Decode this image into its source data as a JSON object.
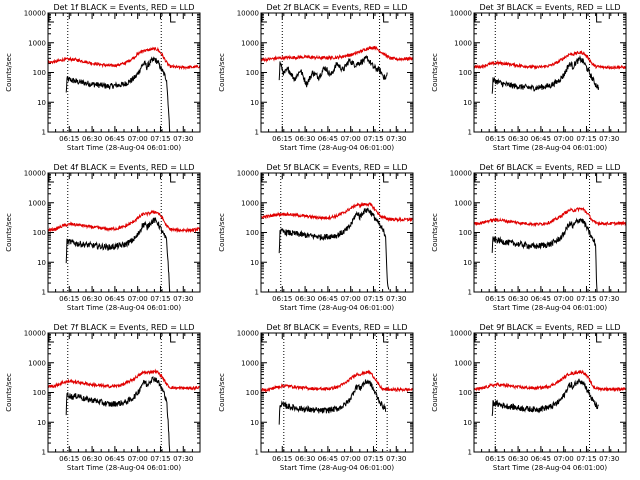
{
  "figure": {
    "common": {
      "xlabel": "Start Time (28-Aug-04 06:01:00)",
      "ylabel": "Counts/sec",
      "x_ticks": [
        "06:15",
        "06:30",
        "06:45",
        "07:00",
        "07:15",
        "07:30"
      ],
      "x_tick_minutes": [
        14,
        29,
        44,
        59,
        74,
        89
      ],
      "y_ticks": [
        "1",
        "10",
        "100",
        "1000",
        "10000"
      ],
      "x_range_minutes": [
        0,
        100
      ],
      "y_range": [
        1,
        10000
      ],
      "y_scale": "log",
      "series_colors": {
        "events": "#000000",
        "lld": "#e00000"
      }
    }
  },
  "chart_data": [
    {
      "type": "line",
      "title": "Det 1f BLACK = Events, RED = LLD",
      "markers": [
        13,
        74.5
      ],
      "flags": [
        0,
        80
      ],
      "series": [
        {
          "key": "events",
          "start": 12,
          "end": 80,
          "x": [
            12,
            12.5,
            20,
            30,
            40,
            50,
            55,
            58,
            60,
            62,
            64,
            65,
            67,
            70,
            72,
            75,
            78,
            79,
            79.6,
            80
          ],
          "y": [
            20,
            60,
            48,
            40,
            34,
            40,
            55,
            75,
            110,
            180,
            200,
            150,
            220,
            280,
            230,
            120,
            60,
            10,
            3,
            1
          ]
        },
        {
          "key": "lld",
          "start": 0,
          "end": 100,
          "x": [
            0,
            5,
            10,
            15,
            20,
            30,
            40,
            45,
            50,
            55,
            60,
            63,
            65,
            68,
            70,
            72,
            75,
            78,
            80,
            85,
            90,
            95,
            100
          ],
          "y": [
            220,
            230,
            270,
            280,
            260,
            200,
            170,
            175,
            200,
            280,
            450,
            560,
            550,
            600,
            620,
            600,
            400,
            220,
            160,
            150,
            150,
            150,
            160
          ]
        }
      ]
    },
    {
      "type": "line",
      "title": "Det 2f BLACK = Events, RED = LLD",
      "markers": [
        14,
        78
      ],
      "flags": [
        0,
        80
      ],
      "series": [
        {
          "key": "events",
          "start": 12,
          "end": 83,
          "x": [
            12,
            12.5,
            15,
            18,
            22,
            26,
            30,
            34,
            38,
            42,
            46,
            50,
            54,
            58,
            62,
            66,
            70,
            74,
            78,
            82,
            83
          ],
          "y": [
            50,
            220,
            90,
            130,
            60,
            120,
            40,
            100,
            70,
            150,
            80,
            200,
            120,
            250,
            180,
            230,
            300,
            150,
            120,
            60,
            90
          ]
        },
        {
          "key": "lld",
          "start": 0,
          "end": 100,
          "x": [
            0,
            10,
            20,
            30,
            40,
            50,
            60,
            65,
            70,
            75,
            80,
            85,
            90,
            100
          ],
          "y": [
            260,
            300,
            320,
            330,
            310,
            320,
            400,
            500,
            650,
            700,
            450,
            300,
            280,
            300
          ]
        }
      ]
    },
    {
      "type": "line",
      "title": "Det 3f BLACK = Events, RED = LLD",
      "markers": [
        14,
        76
      ],
      "flags": [
        0,
        80
      ],
      "series": [
        {
          "key": "events",
          "start": 12,
          "end": 82,
          "x": [
            12,
            12.5,
            20,
            30,
            40,
            50,
            55,
            58,
            60,
            62,
            64,
            65,
            67,
            70,
            72,
            75,
            78,
            80,
            82
          ],
          "y": [
            20,
            55,
            40,
            33,
            30,
            36,
            50,
            70,
            100,
            170,
            200,
            150,
            220,
            280,
            230,
            120,
            60,
            40,
            30
          ]
        },
        {
          "key": "lld",
          "start": 0,
          "end": 100,
          "x": [
            0,
            5,
            10,
            15,
            20,
            30,
            40,
            45,
            50,
            55,
            60,
            63,
            65,
            68,
            70,
            72,
            75,
            78,
            80,
            85,
            90,
            95,
            100
          ],
          "y": [
            150,
            160,
            190,
            210,
            200,
            170,
            150,
            155,
            170,
            220,
            330,
            420,
            410,
            450,
            470,
            450,
            320,
            190,
            160,
            150,
            150,
            150,
            150
          ]
        }
      ]
    },
    {
      "type": "line",
      "title": "Det 4f BLACK = Events, RED = LLD",
      "markers": [
        13,
        74.5
      ],
      "flags": [
        0,
        80
      ],
      "series": [
        {
          "key": "events",
          "start": 12,
          "end": 80,
          "x": [
            12,
            12.5,
            20,
            30,
            40,
            50,
            55,
            58,
            60,
            62,
            64,
            65,
            67,
            70,
            72,
            75,
            78,
            79,
            79.6,
            80
          ],
          "y": [
            10,
            50,
            42,
            36,
            32,
            38,
            52,
            70,
            100,
            170,
            190,
            140,
            210,
            260,
            220,
            110,
            55,
            10,
            3,
            1
          ]
        },
        {
          "key": "lld",
          "start": 0,
          "end": 100,
          "x": [
            0,
            5,
            10,
            15,
            20,
            30,
            40,
            45,
            50,
            55,
            60,
            63,
            65,
            68,
            70,
            72,
            75,
            78,
            80,
            85,
            90,
            95,
            100
          ],
          "y": [
            120,
            130,
            170,
            190,
            180,
            150,
            130,
            135,
            155,
            210,
            330,
            430,
            420,
            470,
            490,
            470,
            320,
            170,
            130,
            120,
            120,
            120,
            130
          ]
        }
      ]
    },
    {
      "type": "line",
      "title": "Det 5f BLACK = Events, RED = LLD",
      "markers": [
        13,
        78
      ],
      "flags": [
        0,
        80
      ],
      "series": [
        {
          "key": "events",
          "start": 12,
          "end": 84,
          "x": [
            12,
            12.5,
            20,
            30,
            40,
            50,
            55,
            58,
            60,
            62,
            64,
            65,
            67,
            70,
            72,
            75,
            78,
            80,
            82,
            83,
            84
          ],
          "y": [
            20,
            110,
            95,
            80,
            70,
            80,
            110,
            150,
            220,
            380,
            450,
            320,
            480,
            600,
            500,
            300,
            180,
            120,
            80,
            3,
            1
          ]
        },
        {
          "key": "lld",
          "start": 0,
          "end": 100,
          "x": [
            0,
            5,
            10,
            15,
            20,
            30,
            40,
            45,
            50,
            55,
            60,
            63,
            65,
            68,
            70,
            72,
            75,
            78,
            80,
            85,
            90,
            95,
            100
          ],
          "y": [
            330,
            350,
            400,
            420,
            400,
            350,
            310,
            320,
            360,
            480,
            700,
            850,
            820,
            880,
            920,
            880,
            600,
            380,
            320,
            280,
            270,
            270,
            280
          ]
        }
      ]
    },
    {
      "type": "line",
      "title": "Det 6f BLACK = Events, RED = LLD",
      "markers": [
        14,
        76
      ],
      "flags": [
        0,
        80
      ],
      "series": [
        {
          "key": "events",
          "start": 12,
          "end": 81,
          "x": [
            12,
            12.5,
            20,
            30,
            40,
            50,
            55,
            58,
            60,
            62,
            64,
            65,
            67,
            70,
            72,
            75,
            78,
            80,
            80.5,
            81
          ],
          "y": [
            20,
            60,
            48,
            40,
            34,
            40,
            55,
            75,
            110,
            180,
            200,
            150,
            220,
            280,
            230,
            120,
            60,
            40,
            3,
            1
          ]
        },
        {
          "key": "lld",
          "start": 0,
          "end": 100,
          "x": [
            0,
            5,
            10,
            15,
            20,
            30,
            40,
            45,
            50,
            55,
            60,
            63,
            65,
            68,
            70,
            72,
            75,
            78,
            80,
            85,
            90,
            95,
            100
          ],
          "y": [
            200,
            210,
            250,
            270,
            250,
            210,
            190,
            195,
            220,
            300,
            460,
            570,
            550,
            600,
            630,
            600,
            420,
            250,
            210,
            200,
            200,
            200,
            210
          ]
        }
      ]
    },
    {
      "type": "line",
      "title": "Det 7f BLACK = Events, RED = LLD",
      "markers": [
        13,
        74.5
      ],
      "flags": [
        0,
        80
      ],
      "series": [
        {
          "key": "events",
          "start": 12,
          "end": 80,
          "x": [
            12,
            12.5,
            16,
            20,
            24,
            30,
            40,
            50,
            55,
            58,
            60,
            62,
            64,
            65,
            67,
            70,
            72,
            75,
            78,
            79,
            79.6,
            80
          ],
          "y": [
            20,
            90,
            70,
            80,
            60,
            55,
            40,
            45,
            60,
            85,
            120,
            200,
            230,
            170,
            250,
            300,
            250,
            130,
            60,
            10,
            3,
            1
          ]
        },
        {
          "key": "lld",
          "start": 0,
          "end": 100,
          "x": [
            0,
            5,
            10,
            15,
            20,
            30,
            40,
            45,
            50,
            55,
            60,
            63,
            65,
            68,
            70,
            72,
            75,
            78,
            80,
            85,
            90,
            95,
            100
          ],
          "y": [
            160,
            170,
            220,
            240,
            220,
            180,
            160,
            165,
            190,
            260,
            380,
            480,
            460,
            500,
            520,
            490,
            340,
            190,
            150,
            140,
            140,
            140,
            150
          ]
        }
      ]
    },
    {
      "type": "line",
      "title": "Det 8f BLACK = Events, RED = LLD",
      "markers": [
        15,
        76,
        83
      ],
      "flags": [
        0,
        80
      ],
      "series": [
        {
          "key": "events",
          "start": 12,
          "end": 82,
          "x": [
            12,
            12.5,
            20,
            30,
            40,
            50,
            55,
            58,
            60,
            62,
            64,
            65,
            67,
            70,
            72,
            75,
            78,
            80,
            82
          ],
          "y": [
            10,
            40,
            32,
            27,
            24,
            28,
            38,
            55,
            80,
            140,
            170,
            130,
            190,
            240,
            200,
            100,
            50,
            35,
            28
          ]
        },
        {
          "key": "lld",
          "start": 0,
          "end": 100,
          "x": [
            0,
            5,
            10,
            15,
            20,
            30,
            40,
            45,
            50,
            55,
            60,
            63,
            65,
            68,
            70,
            72,
            75,
            78,
            80,
            85,
            90,
            95,
            100
          ],
          "y": [
            120,
            125,
            150,
            170,
            160,
            140,
            130,
            135,
            150,
            200,
            320,
            420,
            410,
            460,
            480,
            460,
            300,
            160,
            130,
            125,
            125,
            125,
            125
          ]
        }
      ]
    },
    {
      "type": "line",
      "title": "Det 9f BLACK = Events, RED = LLD",
      "markers": [
        14,
        76
      ],
      "flags": [
        0,
        80
      ],
      "series": [
        {
          "key": "events",
          "start": 12,
          "end": 82,
          "x": [
            12,
            12.5,
            20,
            30,
            40,
            50,
            55,
            58,
            60,
            62,
            64,
            65,
            67,
            70,
            72,
            75,
            78,
            80,
            82
          ],
          "y": [
            15,
            45,
            36,
            30,
            27,
            32,
            45,
            65,
            95,
            160,
            190,
            140,
            210,
            260,
            220,
            110,
            55,
            38,
            30
          ]
        },
        {
          "key": "lld",
          "start": 0,
          "end": 100,
          "x": [
            0,
            5,
            10,
            15,
            20,
            30,
            40,
            45,
            50,
            55,
            60,
            63,
            65,
            68,
            70,
            72,
            75,
            78,
            80,
            85,
            90,
            95,
            100
          ],
          "y": [
            130,
            135,
            165,
            185,
            175,
            150,
            140,
            145,
            165,
            220,
            340,
            440,
            430,
            480,
            500,
            480,
            320,
            170,
            140,
            130,
            130,
            130,
            135
          ]
        }
      ]
    }
  ]
}
